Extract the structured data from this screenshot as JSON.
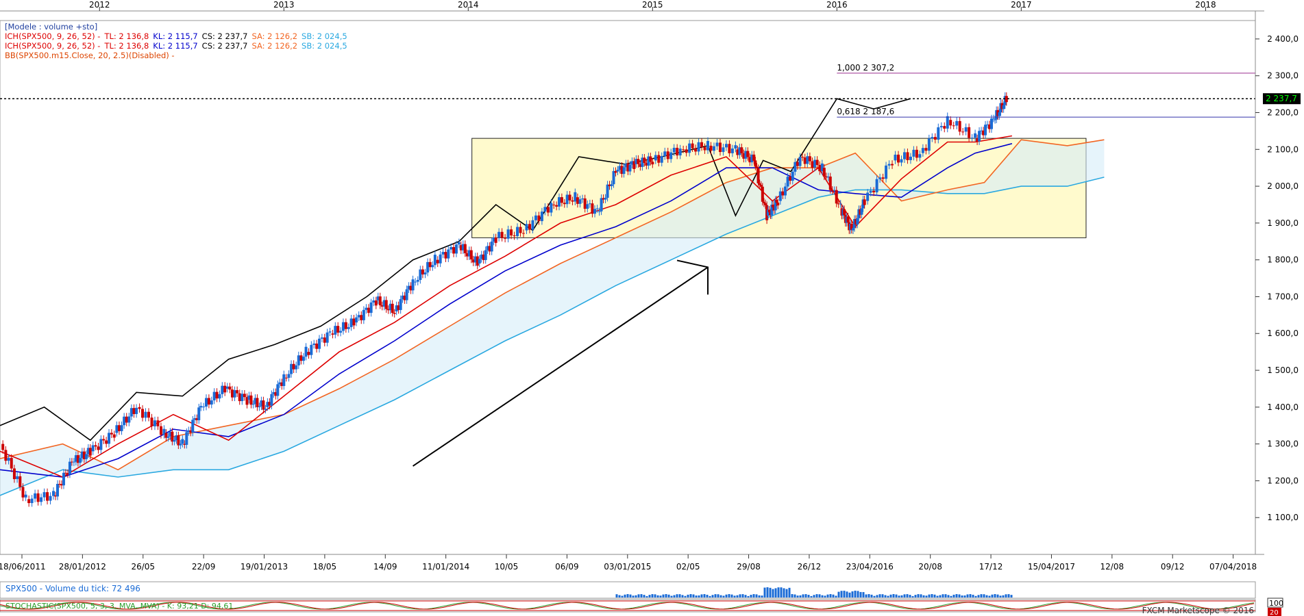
{
  "legend_lines": [
    {
      "parts": [
        {
          "text": "[Modele : volume +sto]",
          "color": "#1f3f9f"
        }
      ]
    },
    {
      "parts": [
        {
          "text": "ICH(SPX500, 9, 26, 52) -",
          "color": "#dd0000"
        },
        {
          "text": "TL: 2 136,8",
          "color": "#dd0000"
        },
        {
          "text": "KL: 2 115,7",
          "color": "#0000cc"
        },
        {
          "text": "CS: 2 237,7",
          "color": "#000000"
        },
        {
          "text": "SA: 2 126,2",
          "color": "#f26522"
        },
        {
          "text": "SB: 2 024,5",
          "color": "#29a8e0"
        }
      ]
    },
    {
      "parts": [
        {
          "text": "ICH(SPX500, 9, 26, 52) -",
          "color": "#dd0000"
        },
        {
          "text": "TL: 2 136,8",
          "color": "#dd0000"
        },
        {
          "text": "KL: 2 115,7",
          "color": "#0000cc"
        },
        {
          "text": "CS: 2 237,7",
          "color": "#000000"
        },
        {
          "text": "SA: 2 126,2",
          "color": "#f26522"
        },
        {
          "text": "SB: 2 024,5",
          "color": "#29a8e0"
        }
      ]
    },
    {
      "parts": [
        {
          "text": "BB(SPX500.m15.Close, 20, 2.5)(Disabled) -",
          "color": "#dd4400"
        }
      ]
    }
  ],
  "volume_label": "SPX500 - Volume du tick: 72 496",
  "stoch_label": "STOCHASTIC(SPX500, 5, 3, 3, MVA, MVA) - K: 93,21 D: 94,61",
  "copyright": "FXCM Marketscope © 2016",
  "stoch_scale": {
    "top": "100",
    "bottom": "20"
  },
  "chart_data": {
    "type": "candlestick",
    "symbol": "SPX500",
    "timeframe": "weekly",
    "ylim": [
      1000,
      2450
    ],
    "y_ticks": [
      1100,
      1200,
      1300,
      1400,
      1500,
      1600,
      1700,
      1800,
      1900,
      2000,
      2100,
      2200,
      2300,
      2400
    ],
    "y_tick_labels": [
      "1 100,0",
      "1 200,0",
      "1 300,0",
      "1 400,0",
      "1 500,0",
      "1 600,0",
      "1 700,0",
      "1 800,0",
      "1 900,0",
      "2 000,0",
      "2 100,0",
      "2 200,0",
      "2 300,0",
      "2 400,0"
    ],
    "year_labels": [
      "2012",
      "2013",
      "2014",
      "2015",
      "2016",
      "2017",
      "2018"
    ],
    "x_labels": [
      "18/06/2011",
      "28/01/2012",
      "26/05",
      "22/09",
      "19/01/2013",
      "18/05",
      "14/09",
      "11/01/2014",
      "10/05",
      "06/09",
      "03/01/2015",
      "02/05",
      "29/08",
      "26/12",
      "23/04/2016",
      "20/08",
      "17/12",
      "15/04/2017",
      "12/08",
      "09/12",
      "07/04/2018"
    ],
    "current_price": 2237.7,
    "current_price_label": "2 237,7",
    "fib_levels": [
      {
        "ratio": "1,000",
        "value": 2307.2,
        "label": "1,000 2 307,2",
        "color": "#9b2c8f"
      },
      {
        "ratio": "0,618",
        "value": 2187.6,
        "label": "0,618 2 187,6",
        "color": "#3333aa"
      }
    ],
    "range_box": {
      "from": "11/01/2014",
      "to": "2017",
      "high": 2130,
      "low": 1860,
      "color": "#fffacd"
    },
    "trend_arrow": {
      "from_price": 1240,
      "to_price": 1780,
      "direction": "up"
    },
    "series": [
      {
        "name": "Close",
        "color": "#1a6bd6",
        "x": [
          2011.46,
          2011.6,
          2011.75,
          2011.85,
          2011.95,
          2012.08,
          2012.2,
          2012.35,
          2012.45,
          2012.55,
          2012.68,
          2012.8,
          2012.9,
          2013.0,
          2013.12,
          2013.25,
          2013.38,
          2013.5,
          2013.6,
          2013.7,
          2013.82,
          2013.95,
          2014.05,
          2014.15,
          2014.3,
          2014.45,
          2014.58,
          2014.7,
          2014.8,
          2014.9,
          2015.0,
          2015.15,
          2015.3,
          2015.45,
          2015.55,
          2015.62,
          2015.68,
          2015.8,
          2015.92,
          2016.02,
          2016.08,
          2016.15,
          2016.3,
          2016.45,
          2016.6,
          2016.75,
          2016.85,
          2016.92
        ],
        "values": [
          1300,
          1150,
          1160,
          1250,
          1280,
          1330,
          1400,
          1330,
          1300,
          1400,
          1450,
          1420,
          1400,
          1480,
          1550,
          1600,
          1630,
          1690,
          1660,
          1740,
          1800,
          1840,
          1790,
          1860,
          1880,
          1950,
          1970,
          1930,
          2040,
          2060,
          2070,
          2100,
          2110,
          2100,
          2070,
          1920,
          1960,
          2080,
          2050,
          1940,
          1880,
          1960,
          2070,
          2090,
          2180,
          2130,
          2180,
          2237.7
        ]
      },
      {
        "name": "Tenkan (TL)",
        "color": "#dd0000",
        "x": [
          2011.46,
          2011.8,
          2012.1,
          2012.4,
          2012.7,
          2013.0,
          2013.3,
          2013.6,
          2013.9,
          2014.2,
          2014.5,
          2014.8,
          2015.1,
          2015.4,
          2015.65,
          2015.9,
          2016.1,
          2016.35,
          2016.6,
          2016.75,
          2016.95
        ],
        "values": [
          1280,
          1210,
          1300,
          1380,
          1310,
          1430,
          1550,
          1630,
          1730,
          1810,
          1900,
          1950,
          2030,
          2080,
          1960,
          2050,
          1890,
          2020,
          2120,
          2120,
          2136.8
        ]
      },
      {
        "name": "Kijun (KL)",
        "color": "#0000cc",
        "x": [
          2011.46,
          2011.8,
          2012.1,
          2012.4,
          2012.7,
          2013.0,
          2013.3,
          2013.6,
          2013.9,
          2014.2,
          2014.5,
          2014.8,
          2015.1,
          2015.4,
          2015.65,
          2015.9,
          2016.1,
          2016.35,
          2016.6,
          2016.75,
          2016.95
        ],
        "values": [
          1230,
          1210,
          1260,
          1340,
          1320,
          1380,
          1490,
          1580,
          1680,
          1770,
          1840,
          1890,
          1960,
          2050,
          2050,
          1990,
          1980,
          1970,
          2050,
          2090,
          2115.7
        ]
      },
      {
        "name": "Chikou (CS)",
        "color": "#000000",
        "x": [
          2011.46,
          2011.7,
          2011.95,
          2012.2,
          2012.45,
          2012.7,
          2012.95,
          2013.2,
          2013.45,
          2013.7,
          2013.95,
          2014.15,
          2014.35,
          2014.6,
          2014.85,
          2015.05,
          2015.3,
          2015.45,
          2015.6,
          2015.75,
          2016.0,
          2016.2,
          2016.4
        ],
        "values": [
          1350,
          1400,
          1310,
          1440,
          1430,
          1530,
          1570,
          1620,
          1700,
          1800,
          1850,
          1950,
          1880,
          2080,
          2060,
          2080,
          2110,
          1920,
          2070,
          2040,
          2237.7,
          2210,
          2237.7
        ]
      },
      {
        "name": "Senkou A (SA)",
        "color": "#f26522",
        "x": [
          2011.46,
          2011.8,
          2012.1,
          2012.4,
          2012.7,
          2013.0,
          2013.3,
          2013.6,
          2013.9,
          2014.2,
          2014.5,
          2014.8,
          2015.1,
          2015.4,
          2015.65,
          2015.9,
          2016.1,
          2016.35,
          2016.6,
          2016.8,
          2017.0,
          2017.25,
          2017.45
        ],
        "values": [
          1260,
          1300,
          1230,
          1320,
          1350,
          1380,
          1450,
          1530,
          1620,
          1710,
          1790,
          1860,
          1930,
          2010,
          2050,
          2050,
          2090,
          1960,
          1990,
          2010,
          2126.2,
          2110,
          2126.2
        ]
      },
      {
        "name": "Senkou B (SB)",
        "color": "#29a8e0",
        "x": [
          2011.46,
          2011.8,
          2012.1,
          2012.4,
          2012.7,
          2013.0,
          2013.3,
          2013.6,
          2013.9,
          2014.2,
          2014.5,
          2014.8,
          2015.1,
          2015.4,
          2015.65,
          2015.9,
          2016.1,
          2016.35,
          2016.6,
          2016.8,
          2017.0,
          2017.25,
          2017.45
        ],
        "values": [
          1160,
          1230,
          1210,
          1230,
          1230,
          1280,
          1350,
          1420,
          1500,
          1580,
          1650,
          1730,
          1800,
          1870,
          1920,
          1970,
          1990,
          1990,
          1980,
          1980,
          2000,
          2000,
          2024.5
        ]
      }
    ]
  }
}
